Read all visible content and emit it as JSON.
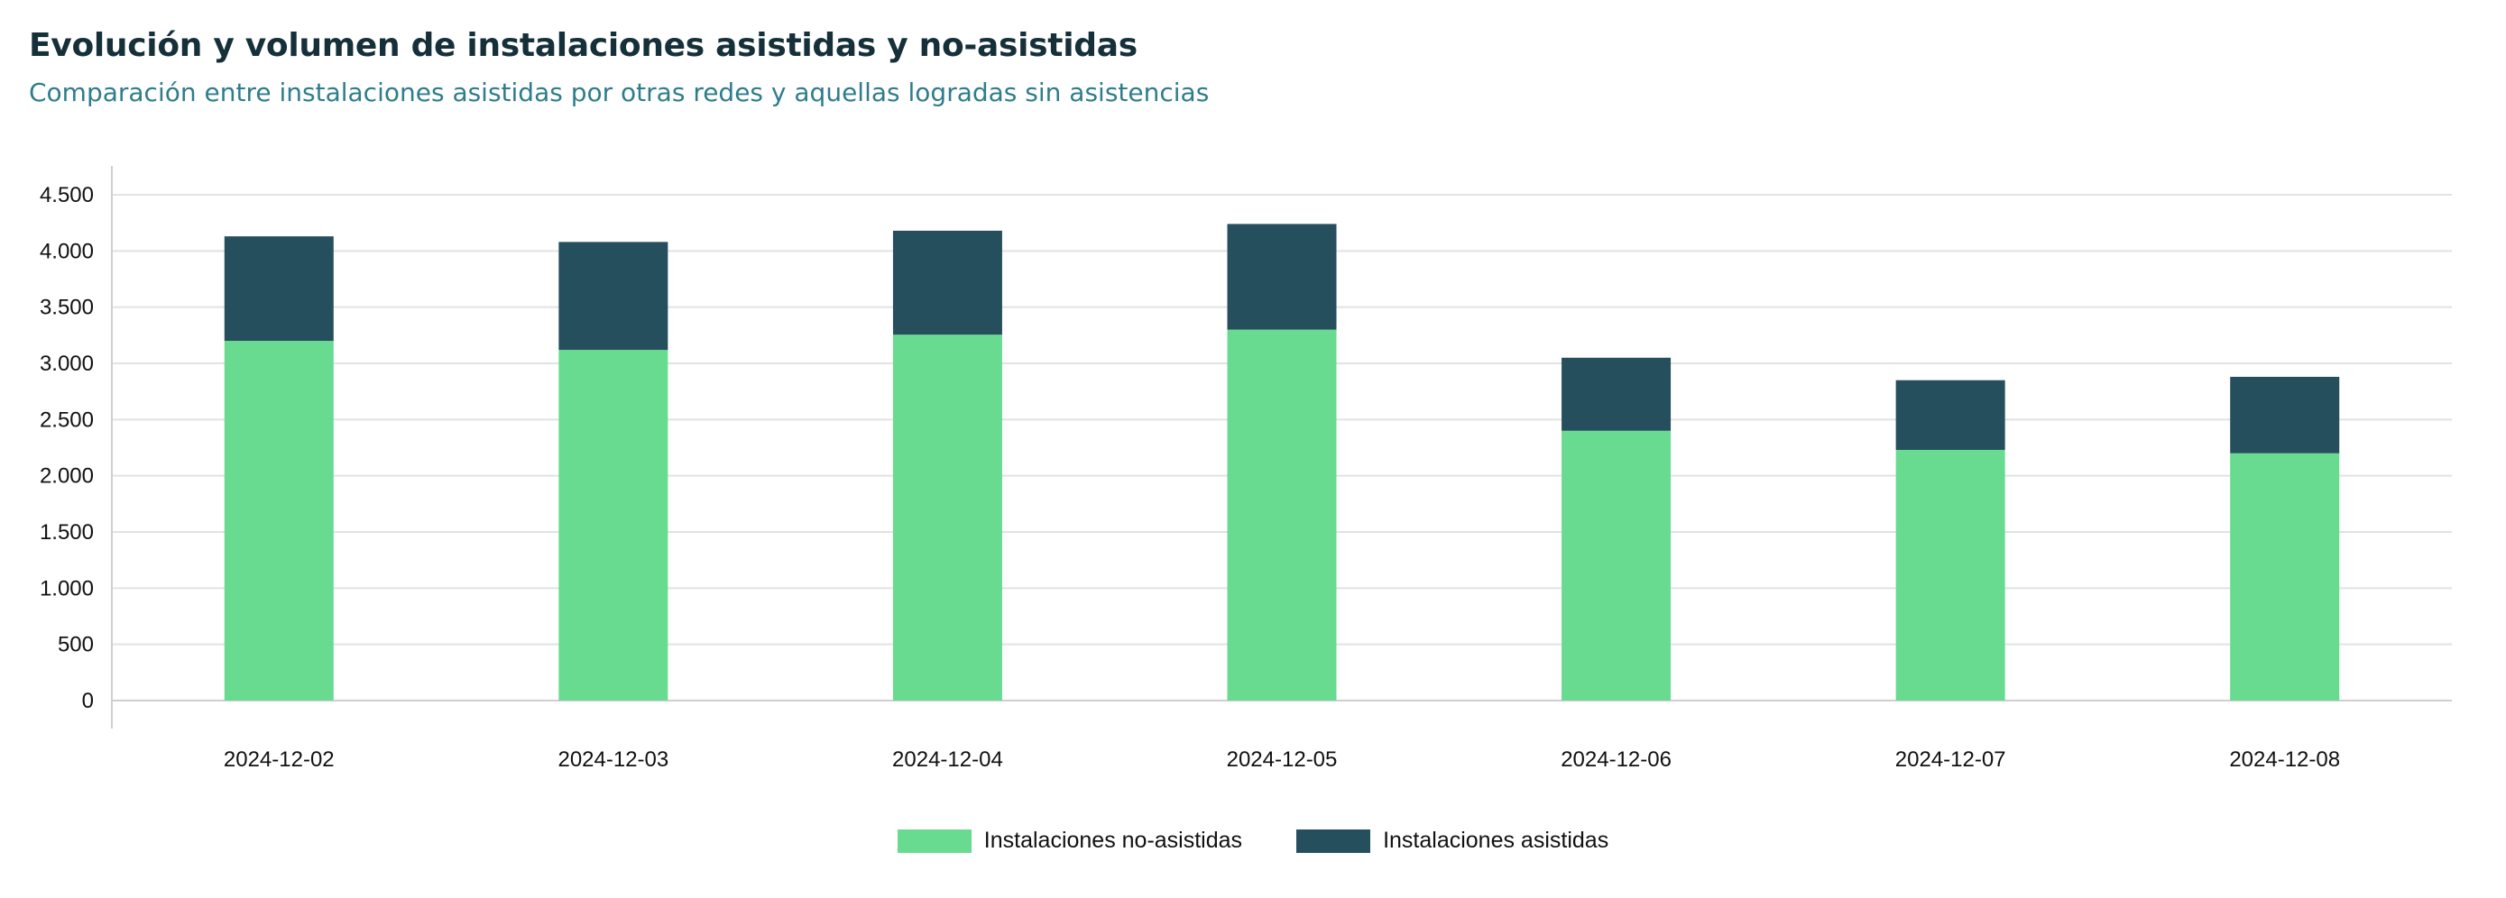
{
  "header": {
    "title": "Evolución y volumen de instalaciones asistidas y no-asistidas",
    "subtitle": "Comparación entre instalaciones asistidas por otras redes y aquellas logradas sin asistencias"
  },
  "colors": {
    "no_asistidas": "#68db91",
    "asistidas": "#264f5e",
    "grid": "#e2e2e2",
    "axis": "#cfcfcf"
  },
  "chart_data": {
    "type": "bar",
    "stacked": true,
    "categories": [
      "2024-12-02",
      "2024-12-03",
      "2024-12-04",
      "2024-12-05",
      "2024-12-06",
      "2024-12-07",
      "2024-12-08"
    ],
    "series": [
      {
        "name": "Instalaciones no-asistidas",
        "values": [
          3200,
          3120,
          3255,
          3300,
          2400,
          2230,
          2200
        ]
      },
      {
        "name": "Instalaciones asistidas",
        "values": [
          930,
          960,
          925,
          940,
          650,
          620,
          680
        ]
      }
    ],
    "ylim": [
      0,
      4500
    ],
    "yticks": [
      0,
      500,
      1000,
      1500,
      2000,
      2500,
      3000,
      3500,
      4000,
      4500
    ],
    "ytick_labels": [
      "0",
      "500",
      "1.000",
      "1.500",
      "2.000",
      "2.500",
      "3.000",
      "3.500",
      "4.000",
      "4.500"
    ],
    "xlabel": "",
    "ylabel": "",
    "grid": true,
    "legend_position": "bottom"
  }
}
